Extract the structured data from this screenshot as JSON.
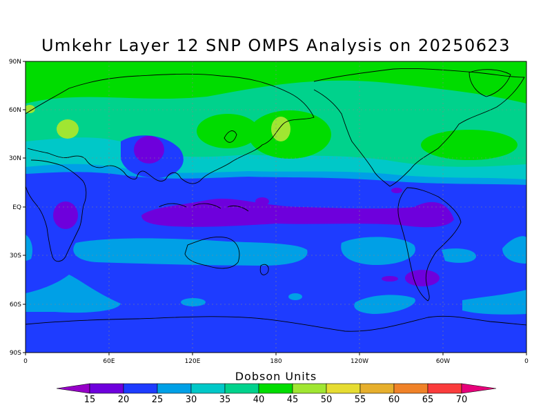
{
  "title": "Umkehr Layer 12 SNP OMPS Analysis on 20250623",
  "colorbar": {
    "title": "Dobson Units",
    "labels": [
      "15",
      "20",
      "25",
      "30",
      "35",
      "40",
      "45",
      "50",
      "55",
      "60",
      "65",
      "70"
    ],
    "colors": [
      "#9600c8",
      "#6e00dc",
      "#1e3cff",
      "#00a0e6",
      "#00c8c8",
      "#00d28c",
      "#00dc00",
      "#a0e632",
      "#e6dc32",
      "#e6af2d",
      "#f08228",
      "#fa3c3c",
      "#e6007a"
    ]
  },
  "lat_labels": [
    "90N",
    "60N",
    "30N",
    "EQ",
    "30S",
    "60S",
    "90S"
  ],
  "lon_labels": [
    "0",
    "60E",
    "120E",
    "180",
    "120W",
    "60W",
    "0"
  ],
  "chart_data": {
    "type": "heatmap",
    "title": "Umkehr Layer 12 SNP OMPS Analysis on 20250623",
    "units": "Dobson Units",
    "date": "20250623",
    "projection": "cylindrical equidistant",
    "x_range": [
      0,
      360
    ],
    "y_range": [
      -90,
      90
    ],
    "levels": [
      15,
      20,
      25,
      30,
      35,
      40,
      45,
      50,
      55,
      60,
      65,
      70
    ],
    "regions": [
      {
        "lat": [
          60,
          90
        ],
        "lon": [
          0,
          360
        ],
        "value": "40-45"
      },
      {
        "lat": [
          30,
          60
        ],
        "lon": [
          0,
          360
        ],
        "value": "35-40"
      },
      {
        "lat": [
          15,
          30
        ],
        "lon": [
          0,
          360
        ],
        "value": "25-35"
      },
      {
        "lat": [
          -10,
          15
        ],
        "lon": [
          0,
          360
        ],
        "value": "20-25"
      },
      {
        "lat": [
          -10,
          0
        ],
        "lon": [
          90,
          270
        ],
        "value": "15-20"
      },
      {
        "lat": [
          -40,
          -15
        ],
        "lon": [
          0,
          360
        ],
        "value": "25-30"
      },
      {
        "lat": [
          -60,
          -40
        ],
        "lon": [
          0,
          360
        ],
        "value": "20-30"
      },
      {
        "lat": [
          -90,
          -65
        ],
        "lon": [
          0,
          360
        ],
        "value": "20-25"
      }
    ]
  }
}
